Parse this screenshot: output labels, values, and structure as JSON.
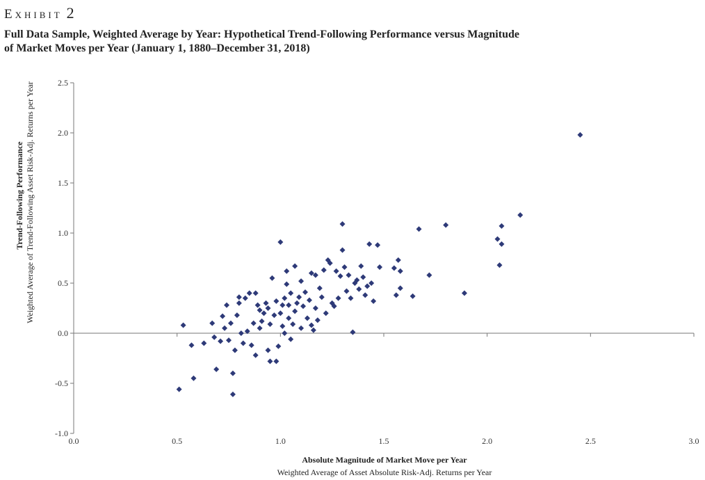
{
  "header": {
    "exhibit_word": "Exhibit",
    "exhibit_number": "2",
    "title_line1": "Full Data Sample, Weighted Average by Year: Hypothetical Trend-Following Performance versus Magnitude",
    "title_line2": "of Market Moves per Year (January 1, 1880–December 31, 2018)"
  },
  "chart_data": {
    "type": "scatter",
    "xlabel": "Absolute Magnitude of Market Move per Year",
    "xlabel_sub": "Weighted Average of Asset Absolute Risk-Adj. Returns per Year",
    "ylabel": "Trend-Following Performance",
    "ylabel_sub": "Weighted Average of Trend-Following Asset Risk-Adj. Returns per Year",
    "xlim": [
      0.0,
      3.0
    ],
    "ylim": [
      -1.0,
      2.5
    ],
    "xticks": [
      "0.0",
      "0.5",
      "1.0",
      "1.5",
      "2.0",
      "2.5",
      "3.0"
    ],
    "yticks": [
      "-1.0",
      "-0.5",
      "0.0",
      "0.5",
      "1.0",
      "1.5",
      "2.0",
      "2.5"
    ],
    "grid": false,
    "marker_color": "#2e3a78",
    "points": [
      [
        0.51,
        -0.56
      ],
      [
        0.53,
        0.08
      ],
      [
        0.57,
        -0.12
      ],
      [
        0.58,
        -0.45
      ],
      [
        0.63,
        -0.1
      ],
      [
        0.67,
        0.1
      ],
      [
        0.68,
        -0.04
      ],
      [
        0.69,
        -0.36
      ],
      [
        0.71,
        -0.08
      ],
      [
        0.72,
        0.17
      ],
      [
        0.73,
        0.05
      ],
      [
        0.74,
        0.28
      ],
      [
        0.75,
        -0.07
      ],
      [
        0.76,
        0.1
      ],
      [
        0.77,
        -0.4
      ],
      [
        0.77,
        -0.61
      ],
      [
        0.78,
        -0.17
      ],
      [
        0.79,
        0.18
      ],
      [
        0.8,
        0.3
      ],
      [
        0.8,
        0.36
      ],
      [
        0.81,
        0.0
      ],
      [
        0.82,
        -0.1
      ],
      [
        0.83,
        0.35
      ],
      [
        0.84,
        0.02
      ],
      [
        0.85,
        0.4
      ],
      [
        0.86,
        -0.12
      ],
      [
        0.87,
        0.1
      ],
      [
        0.88,
        0.4
      ],
      [
        0.88,
        -0.22
      ],
      [
        0.89,
        0.28
      ],
      [
        0.9,
        0.05
      ],
      [
        0.9,
        0.23
      ],
      [
        0.91,
        0.12
      ],
      [
        0.92,
        0.2
      ],
      [
        0.93,
        0.3
      ],
      [
        0.94,
        0.25
      ],
      [
        0.94,
        -0.17
      ],
      [
        0.95,
        -0.28
      ],
      [
        0.95,
        0.09
      ],
      [
        0.96,
        0.55
      ],
      [
        0.97,
        0.18
      ],
      [
        0.98,
        -0.28
      ],
      [
        0.98,
        0.32
      ],
      [
        0.99,
        -0.13
      ],
      [
        1.0,
        0.91
      ],
      [
        1.0,
        0.2
      ],
      [
        1.01,
        0.07
      ],
      [
        1.01,
        0.28
      ],
      [
        1.02,
        0.0
      ],
      [
        1.02,
        0.35
      ],
      [
        1.03,
        0.49
      ],
      [
        1.03,
        0.62
      ],
      [
        1.04,
        0.15
      ],
      [
        1.04,
        0.28
      ],
      [
        1.05,
        -0.06
      ],
      [
        1.05,
        0.4
      ],
      [
        1.06,
        0.09
      ],
      [
        1.07,
        0.67
      ],
      [
        1.07,
        0.22
      ],
      [
        1.08,
        0.3
      ],
      [
        1.09,
        0.36
      ],
      [
        1.1,
        0.05
      ],
      [
        1.1,
        0.52
      ],
      [
        1.11,
        0.27
      ],
      [
        1.12,
        0.41
      ],
      [
        1.13,
        0.15
      ],
      [
        1.14,
        0.33
      ],
      [
        1.15,
        0.6
      ],
      [
        1.15,
        0.08
      ],
      [
        1.16,
        0.03
      ],
      [
        1.17,
        0.25
      ],
      [
        1.17,
        0.58
      ],
      [
        1.18,
        0.13
      ],
      [
        1.19,
        0.45
      ],
      [
        1.2,
        0.36
      ],
      [
        1.21,
        0.63
      ],
      [
        1.22,
        0.2
      ],
      [
        1.23,
        0.73
      ],
      [
        1.24,
        0.7
      ],
      [
        1.25,
        0.3
      ],
      [
        1.26,
        0.27
      ],
      [
        1.27,
        0.62
      ],
      [
        1.28,
        0.35
      ],
      [
        1.29,
        0.57
      ],
      [
        1.3,
        1.09
      ],
      [
        1.3,
        0.83
      ],
      [
        1.31,
        0.66
      ],
      [
        1.32,
        0.42
      ],
      [
        1.33,
        0.58
      ],
      [
        1.34,
        0.35
      ],
      [
        1.35,
        0.01
      ],
      [
        1.36,
        0.5
      ],
      [
        1.37,
        0.53
      ],
      [
        1.38,
        0.44
      ],
      [
        1.39,
        0.67
      ],
      [
        1.4,
        0.56
      ],
      [
        1.41,
        0.38
      ],
      [
        1.42,
        0.47
      ],
      [
        1.43,
        0.89
      ],
      [
        1.44,
        0.5
      ],
      [
        1.45,
        0.32
      ],
      [
        1.47,
        0.88
      ],
      [
        1.48,
        0.66
      ],
      [
        1.55,
        0.65
      ],
      [
        1.56,
        0.38
      ],
      [
        1.57,
        0.73
      ],
      [
        1.58,
        0.62
      ],
      [
        1.58,
        0.45
      ],
      [
        1.64,
        0.37
      ],
      [
        1.67,
        1.04
      ],
      [
        1.72,
        0.58
      ],
      [
        1.8,
        1.08
      ],
      [
        1.89,
        0.4
      ],
      [
        2.05,
        0.94
      ],
      [
        2.06,
        0.68
      ],
      [
        2.07,
        1.07
      ],
      [
        2.07,
        0.89
      ],
      [
        2.16,
        1.18
      ],
      [
        2.45,
        1.98
      ]
    ]
  }
}
